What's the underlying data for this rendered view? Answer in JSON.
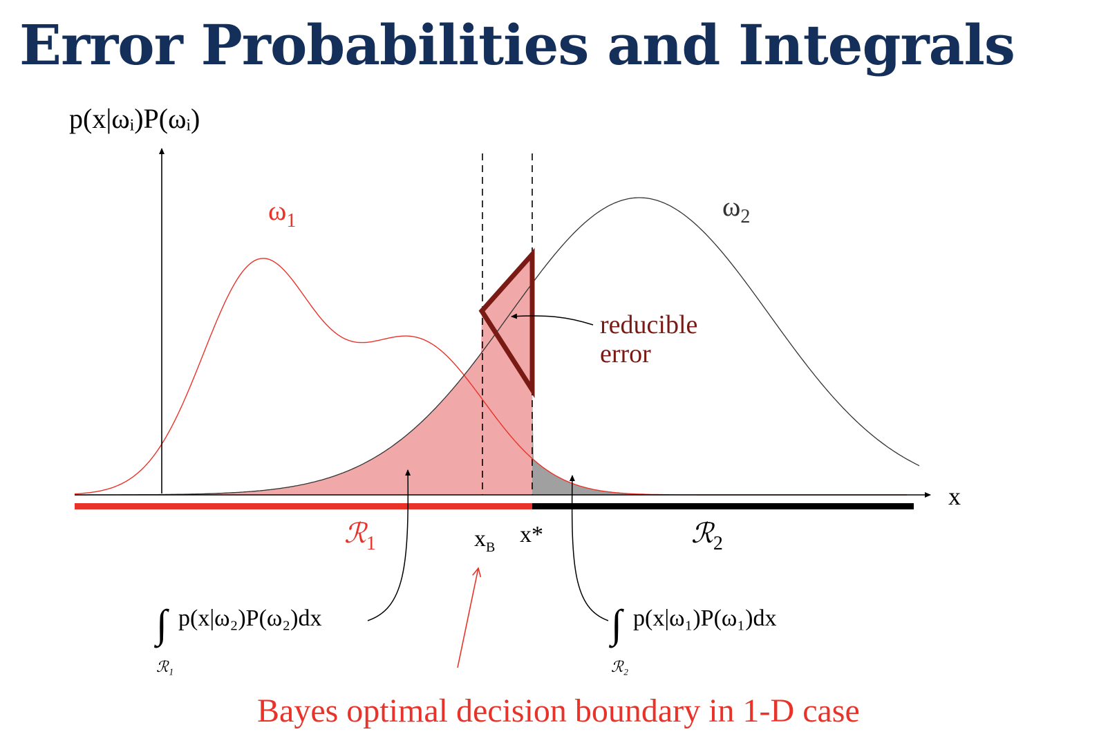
{
  "title": "Error Probabilities and Integrals",
  "y_axis_label": "p(x|ωᵢ)P(ωᵢ)",
  "x_axis_label": "x",
  "curves": {
    "class1_label": "ω",
    "class1_sub": "1",
    "class2_label": "ω",
    "class2_sub": "2"
  },
  "reducible_error_label": [
    "reducible",
    "error"
  ],
  "boundaries": {
    "bayes_label": "x",
    "bayes_sub": "B",
    "chosen_label": "x*"
  },
  "regions": {
    "r1": "ℛ",
    "r1_sub": "1",
    "r2": "ℛ",
    "r2_sub": "2"
  },
  "integrals": {
    "left": "p(x|ω₂)P(ω₂)dx",
    "left_sub": "ℛ₁",
    "right": "p(x|ω₁)P(ω₁)dx",
    "right_sub": "ℛ₂"
  },
  "caption": "Bayes optimal decision boundary  in 1-D case",
  "colors": {
    "title": "#14305a",
    "class1": "#e8332a",
    "class2": "#333333",
    "pink_fill": "#f0a8a8",
    "gray_fill": "#a0a0a0",
    "triangle": "#7a1a14",
    "caption": "#e8332a"
  }
}
